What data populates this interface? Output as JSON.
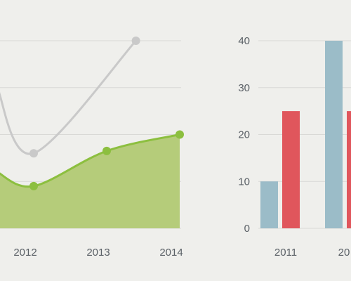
{
  "chart_data": [
    {
      "type": "area",
      "title": "",
      "xlabel": "",
      "ylabel": "",
      "x": [
        "2012",
        "2013",
        "2014"
      ],
      "series": [
        {
          "role": "gray-line",
          "color": "#c9c9c9",
          "points": [
            [
              2011.5,
              30
            ],
            [
              2012.0,
              16
            ],
            [
              2013.4,
              40
            ]
          ]
        },
        {
          "role": "green-area",
          "color": "#8cbf3f",
          "fill": "#b5cc7a",
          "points": [
            [
              2011.5,
              12
            ],
            [
              2012.0,
              9
            ],
            [
              2013.0,
              16.5
            ],
            [
              2014.0,
              20
            ]
          ]
        }
      ],
      "ylim": [
        0,
        40
      ],
      "grid": true
    },
    {
      "type": "bar",
      "title": "",
      "xlabel": "",
      "ylabel": "",
      "categories": [
        "2011",
        "20"
      ],
      "y_ticks": [
        "0",
        "10",
        "20",
        "30",
        "40"
      ],
      "series": [
        {
          "color": "#9bbcc8",
          "values": [
            10,
            40
          ]
        },
        {
          "color": "#e0565c",
          "values": [
            25,
            25
          ]
        }
      ],
      "ylim": [
        0,
        40
      ],
      "grid": true
    }
  ]
}
